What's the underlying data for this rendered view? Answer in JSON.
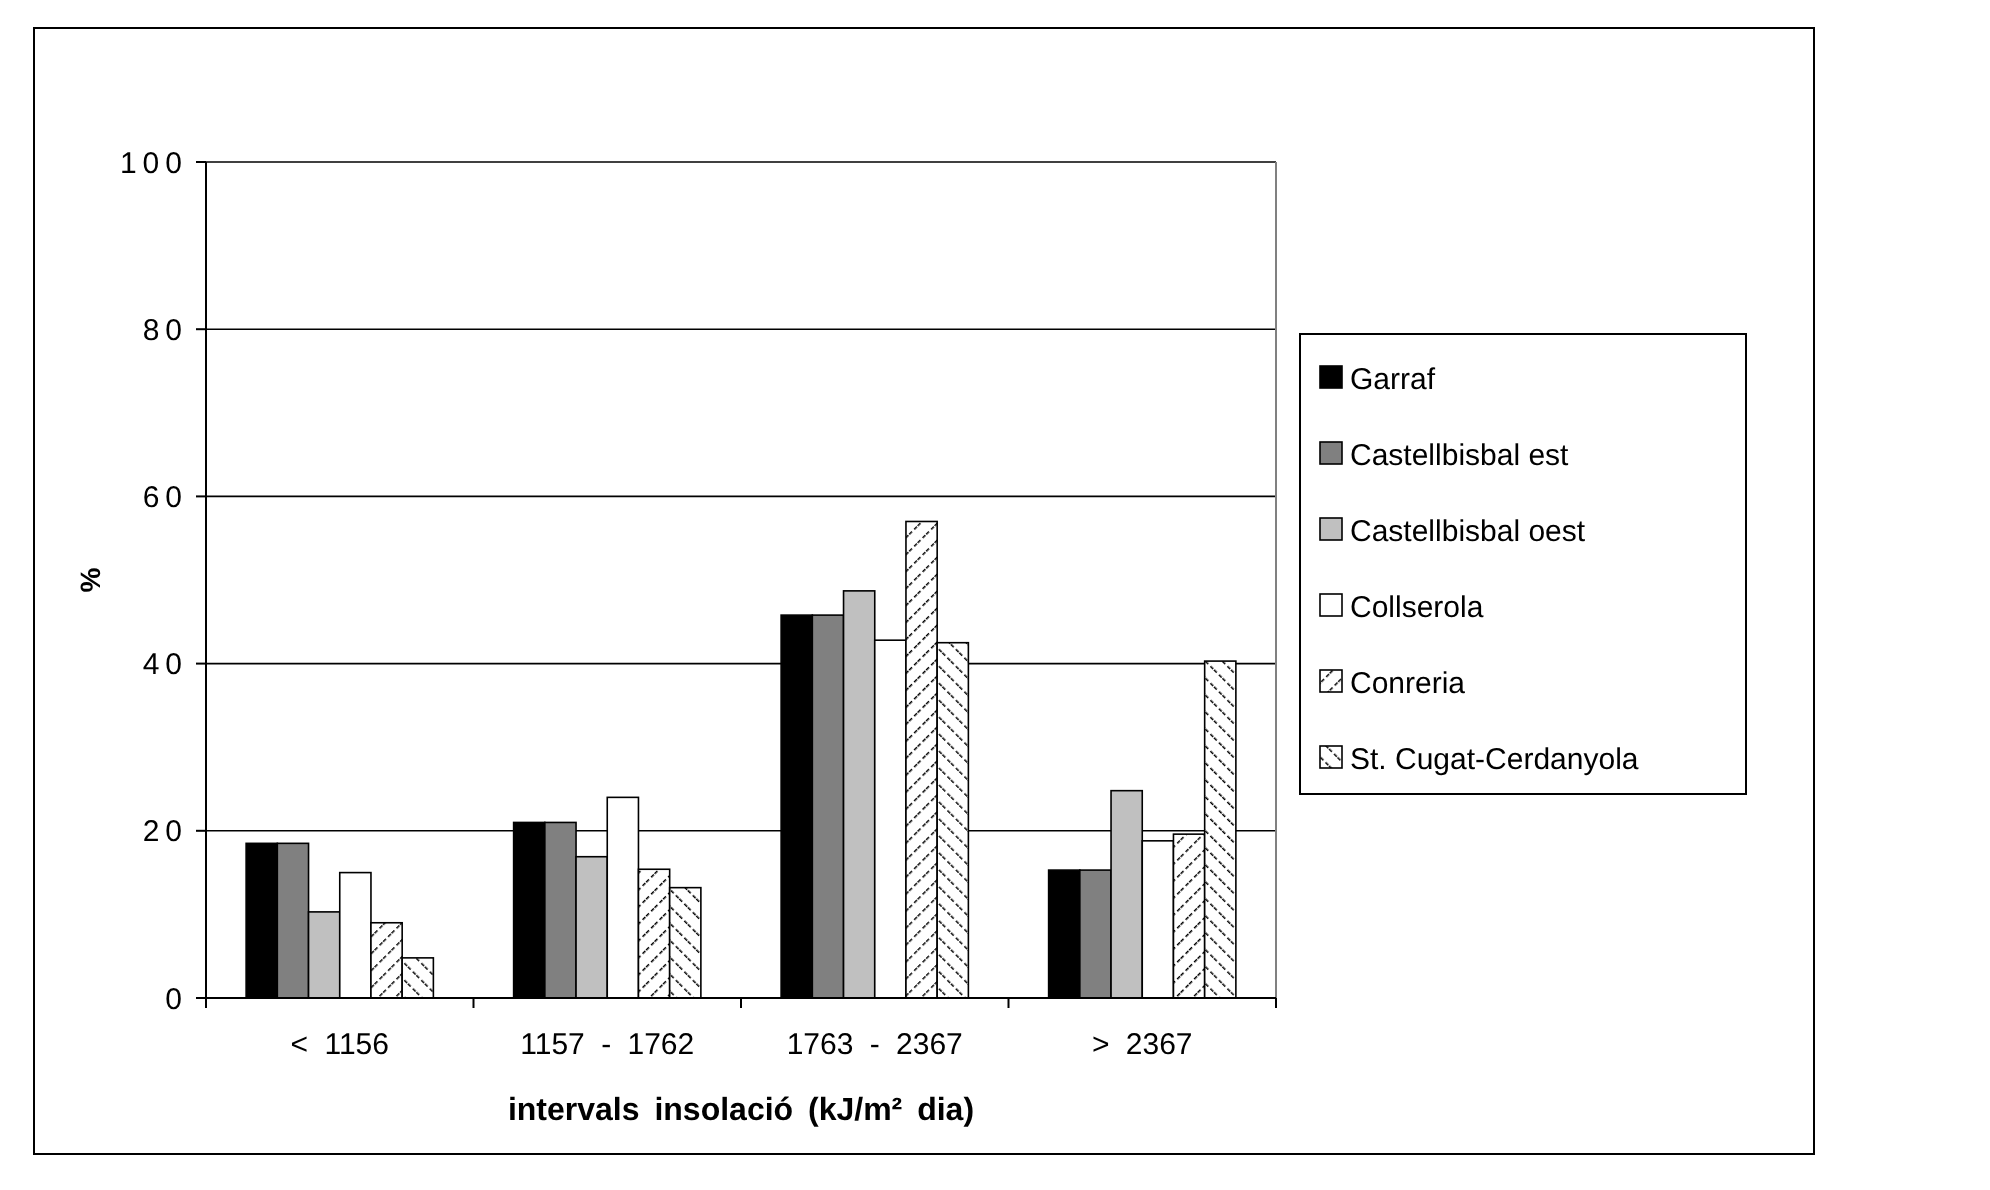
{
  "chart_data": {
    "type": "bar",
    "xlabel": "intervals insolació (kJ/m² dia)",
    "ylabel": "%",
    "categories": [
      "< 1156",
      "1157 - 1762",
      "1763 - 2367",
      "> 2367"
    ],
    "series": [
      {
        "name": "Garraf",
        "color": "#000000",
        "values": [
          18.5,
          21,
          45.8,
          15.3
        ]
      },
      {
        "name": "Castellbisbal est",
        "color": "#808080",
        "values": [
          18.5,
          21,
          45.8,
          15.3
        ]
      },
      {
        "name": "Castellbisbal oest",
        "color": "#c0c0c0",
        "values": [
          10.3,
          16.9,
          48.7,
          24.8
        ]
      },
      {
        "name": "Collserola",
        "color": "#ffffff",
        "values": [
          15,
          24,
          42.8,
          18.8
        ]
      },
      {
        "name": "Conreria",
        "color": "#000000",
        "values": [
          9,
          15.4,
          57,
          19.6
        ]
      },
      {
        "name": "St. Cugat-Cerdanyola",
        "color": "#000000",
        "values": [
          4.8,
          13.2,
          42.5,
          40.3
        ]
      }
    ],
    "ylim": [
      0,
      100
    ],
    "yticks": [
      0,
      20,
      40,
      60,
      80,
      100
    ],
    "grid": "y",
    "legend": "right"
  }
}
